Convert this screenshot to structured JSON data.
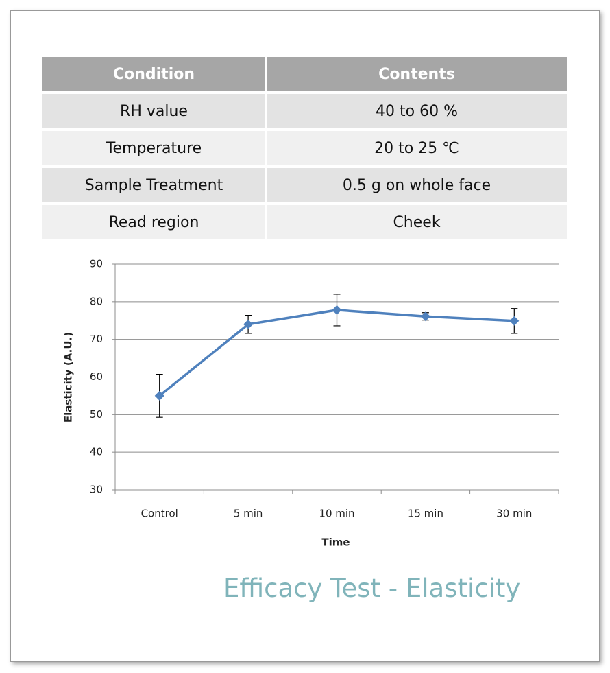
{
  "table": {
    "header": [
      "Condition",
      "Contents"
    ],
    "rows": [
      [
        "RH value",
        "40 to 60 %"
      ],
      [
        "Temperature",
        "20 to 25 ℃"
      ],
      [
        "Sample Treatment",
        "0.5 g on whole face"
      ],
      [
        "Read region",
        "Cheek"
      ]
    ]
  },
  "chart_data": {
    "type": "line",
    "x_label": "Time",
    "y_label": "Elasticity (A.U.)",
    "categories": [
      "Control",
      "5 min",
      "10 min",
      "15 min",
      "30 min"
    ],
    "series": [
      {
        "name": "Elasticity",
        "color": "#4f81bd",
        "values": [
          55,
          74,
          77.8,
          76.1,
          74.9
        ],
        "errors": [
          5.7,
          2.4,
          4.2,
          1.0,
          3.3
        ]
      }
    ],
    "ylim": [
      30,
      90
    ],
    "yticks": [
      30,
      40,
      50,
      60,
      70,
      80,
      90
    ],
    "grid": true
  },
  "caption": "Efficacy Test - Elasticity"
}
